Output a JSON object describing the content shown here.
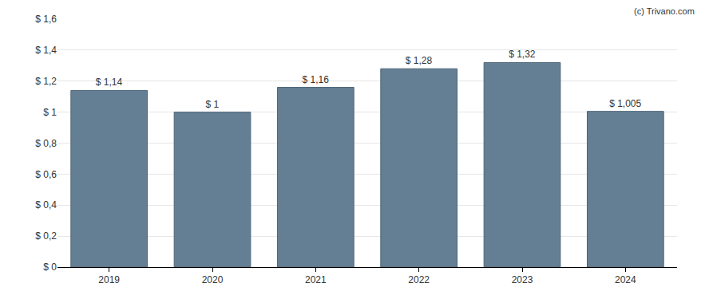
{
  "chart_data": {
    "type": "bar",
    "annotations": [
      "(c) Trivano.com"
    ],
    "categories": [
      "2019",
      "2020",
      "2021",
      "2022",
      "2023",
      "2024"
    ],
    "values": [
      1.14,
      1,
      1.16,
      1.28,
      1.32,
      1.005
    ],
    "value_labels": [
      "$ 1,14",
      "$ 1",
      "$ 1,16",
      "$ 1,28",
      "$ 1,32",
      "$ 1,005"
    ],
    "data_labels": true,
    "color": "#647f94",
    "ylim": [
      0,
      1.6
    ],
    "yticks": [
      {
        "value": 0,
        "label": "$ 0"
      },
      {
        "value": 0.2,
        "label": "$ 0,2"
      },
      {
        "value": 0.4,
        "label": "$ 0,4"
      },
      {
        "value": 0.6,
        "label": "$ 0,6"
      },
      {
        "value": 0.8,
        "label": "$ 0,8"
      },
      {
        "value": 1,
        "label": "$ 1"
      },
      {
        "value": 1.2,
        "label": "$ 1,2"
      },
      {
        "value": 1.4,
        "label": "$ 1,4"
      },
      {
        "value": 1.6,
        "label": "$ 1,6"
      }
    ],
    "grid": true
  }
}
